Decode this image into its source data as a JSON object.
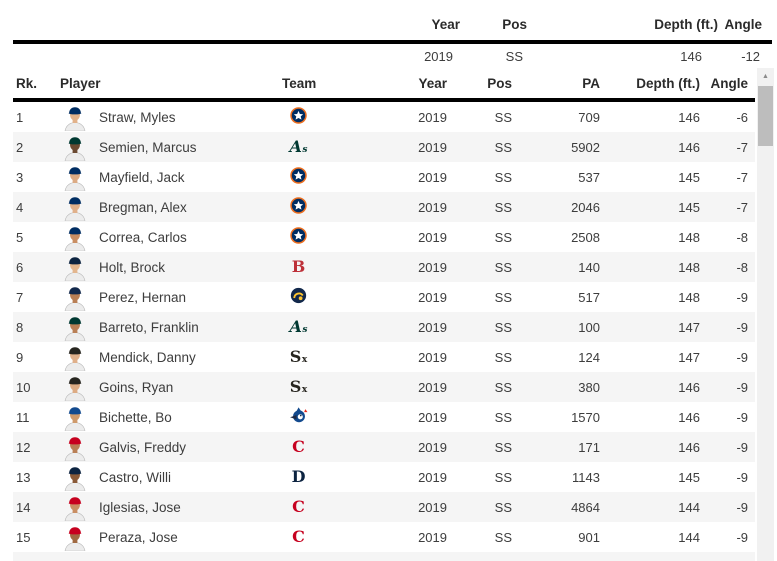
{
  "summary": {
    "headers": {
      "year": "Year",
      "pos": "Pos",
      "depth": "Depth (ft.)",
      "angle": "Angle"
    },
    "values": {
      "year": "2019",
      "pos": "SS",
      "depth": "146",
      "angle": "-12"
    }
  },
  "table": {
    "headers": {
      "rank": "Rk.",
      "player": "Player",
      "team": "Team",
      "year": "Year",
      "pos": "Pos",
      "pa": "PA",
      "depth": "Depth (ft.)",
      "angle": "Angle"
    },
    "players": [
      {
        "rank": "1",
        "name": "Straw, Myles",
        "team": "HOU",
        "year": "2019",
        "pos": "SS",
        "pa": "709",
        "depth": "146",
        "angle": "-6",
        "skin": "#e2b28a"
      },
      {
        "rank": "2",
        "name": "Semien, Marcus",
        "team": "OAK",
        "year": "2019",
        "pos": "SS",
        "pa": "5902",
        "depth": "146",
        "angle": "-7",
        "skin": "#6b4a32"
      },
      {
        "rank": "3",
        "name": "Mayfield, Jack",
        "team": "HOU",
        "year": "2019",
        "pos": "SS",
        "pa": "537",
        "depth": "145",
        "angle": "-7",
        "skin": "#dcab84"
      },
      {
        "rank": "4",
        "name": "Bregman, Alex",
        "team": "HOU",
        "year": "2019",
        "pos": "SS",
        "pa": "2046",
        "depth": "145",
        "angle": "-7",
        "skin": "#e0b08a"
      },
      {
        "rank": "5",
        "name": "Correa, Carlos",
        "team": "HOU",
        "year": "2019",
        "pos": "SS",
        "pa": "2508",
        "depth": "148",
        "angle": "-8",
        "skin": "#c98e63"
      },
      {
        "rank": "6",
        "name": "Holt, Brock",
        "team": "BOS",
        "year": "2019",
        "pos": "SS",
        "pa": "140",
        "depth": "148",
        "angle": "-8",
        "skin": "#e3b68e"
      },
      {
        "rank": "7",
        "name": "Perez, Hernan",
        "team": "MIL",
        "year": "2019",
        "pos": "SS",
        "pa": "517",
        "depth": "148",
        "angle": "-9",
        "skin": "#b97f55"
      },
      {
        "rank": "8",
        "name": "Barreto, Franklin",
        "team": "OAK",
        "year": "2019",
        "pos": "SS",
        "pa": "100",
        "depth": "147",
        "angle": "-9",
        "skin": "#b97f55"
      },
      {
        "rank": "9",
        "name": "Mendick, Danny",
        "team": "CWS",
        "year": "2019",
        "pos": "SS",
        "pa": "124",
        "depth": "147",
        "angle": "-9",
        "skin": "#e0b08a"
      },
      {
        "rank": "10",
        "name": "Goins, Ryan",
        "team": "CWS",
        "year": "2019",
        "pos": "SS",
        "pa": "380",
        "depth": "146",
        "angle": "-9",
        "skin": "#ddab83"
      },
      {
        "rank": "11",
        "name": "Bichette, Bo",
        "team": "TOR",
        "year": "2019",
        "pos": "SS",
        "pa": "1570",
        "depth": "146",
        "angle": "-9",
        "skin": "#cf9a6b"
      },
      {
        "rank": "12",
        "name": "Galvis, Freddy",
        "team": "CIN",
        "year": "2019",
        "pos": "SS",
        "pa": "171",
        "depth": "146",
        "angle": "-9",
        "skin": "#b97f55"
      },
      {
        "rank": "13",
        "name": "Castro, Willi",
        "team": "DET",
        "year": "2019",
        "pos": "SS",
        "pa": "1143",
        "depth": "145",
        "angle": "-9",
        "skin": "#8a5a38"
      },
      {
        "rank": "14",
        "name": "Iglesias, Jose",
        "team": "CIN",
        "year": "2019",
        "pos": "SS",
        "pa": "4864",
        "depth": "144",
        "angle": "-9",
        "skin": "#c98e63"
      },
      {
        "rank": "15",
        "name": "Peraza, Jose",
        "team": "CIN",
        "year": "2019",
        "pos": "SS",
        "pa": "901",
        "depth": "144",
        "angle": "-9",
        "skin": "#a06a42"
      }
    ]
  },
  "teams": {
    "HOU": {
      "name": "Astros",
      "logo": "circle-star",
      "bg": "#002d62",
      "ring": "#eb6e1f",
      "fg": "#ffffff",
      "cap": "#002d62"
    },
    "OAK": {
      "name": "Athletics",
      "logo": "text",
      "text": "A",
      "sub": "s",
      "color": "#003831",
      "italic": true,
      "cap": "#003831"
    },
    "BOS": {
      "name": "Red Sox",
      "logo": "text",
      "text": "B",
      "sub": "",
      "color": "#bd3039",
      "italic": false,
      "cap": "#0c2340"
    },
    "MIL": {
      "name": "Brewers",
      "logo": "glove",
      "bg": "#12284b",
      "accent": "#ffc52f",
      "cap": "#12284b"
    },
    "CWS": {
      "name": "White Sox",
      "logo": "text",
      "text": "S",
      "sub": "x",
      "color": "#27251f",
      "italic": false,
      "cap": "#27251f"
    },
    "TOR": {
      "name": "Blue Jays",
      "logo": "bird",
      "bg": "#134a8e",
      "face": "#ffffff",
      "beak": "#1f2a44",
      "leaf": "#e8291c",
      "cap": "#134a8e"
    },
    "CIN": {
      "name": "Reds",
      "logo": "text",
      "text": "C",
      "sub": "",
      "color": "#c6011f",
      "italic": false,
      "cap": "#c6011f"
    },
    "DET": {
      "name": "Tigers",
      "logo": "text",
      "text": "D",
      "sub": "",
      "color": "#0c2340",
      "italic": false,
      "cap": "#0c2340"
    }
  },
  "colors": {
    "rule": "#000000",
    "zebra": "#f5f5f5",
    "header_text": "#2b2b2b",
    "body_text": "#3d3d3d",
    "jersey": "#ececec",
    "scroll_track": "#f1f1f1",
    "scroll_thumb": "#bdbdbd"
  },
  "icons": {
    "up_arrow": "▲"
  }
}
